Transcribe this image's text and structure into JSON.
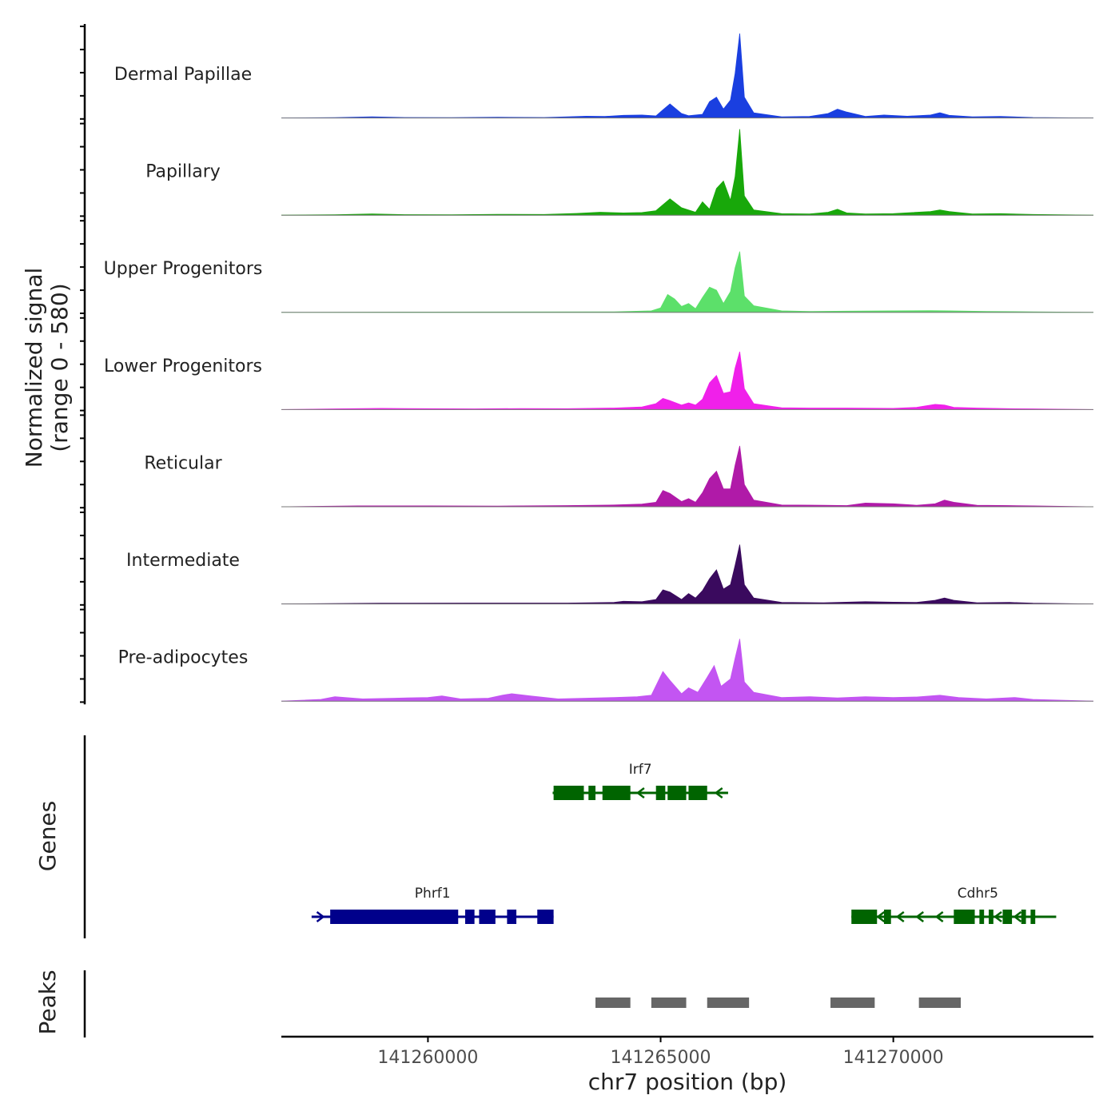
{
  "chart_data": {
    "type": "area",
    "title": "",
    "ylabel": "Normalized signal\n(range 0 - 580)",
    "ylabel_lines": [
      "Normalized signal",
      "(range 0 - 580)"
    ],
    "ylim": [
      0,
      580
    ],
    "xlabel": "chr7 position (bp)",
    "xlim": [
      141256850,
      141274300
    ],
    "x_ticks": [
      141260000,
      141265000,
      141270000
    ],
    "x_tick_labels": [
      "141260000",
      "141265000",
      "141270000"
    ],
    "tracks": [
      {
        "name": "Dermal Papillae",
        "color": "#1a3fe0",
        "x": [
          141256850,
          141258000,
          141258800,
          141259500,
          141260500,
          141261500,
          141262500,
          141263000,
          141263400,
          141263800,
          141264200,
          141264600,
          141264900,
          141265050,
          141265200,
          141265450,
          141265600,
          141265900,
          141266050,
          141266200,
          141266350,
          141266500,
          141266600,
          141266700,
          141266800,
          141267000,
          141267600,
          141268200,
          141268600,
          141268800,
          141269000,
          141269400,
          141269800,
          141270300,
          141270800,
          141271000,
          141271200,
          141271700,
          141272300,
          141273000,
          141274300
        ],
        "values": [
          0,
          2,
          8,
          3,
          2,
          5,
          3,
          8,
          12,
          10,
          18,
          20,
          14,
          55,
          95,
          30,
          15,
          25,
          110,
          140,
          60,
          120,
          300,
          570,
          140,
          35,
          8,
          10,
          30,
          60,
          40,
          10,
          20,
          12,
          20,
          35,
          18,
          8,
          10,
          3,
          0
        ]
      },
      {
        "name": "Papillary",
        "color": "#18a80a",
        "x": [
          141256850,
          141258000,
          141258800,
          141259500,
          141260500,
          141261500,
          141262500,
          141263200,
          141263700,
          141264200,
          141264600,
          141264900,
          141265050,
          141265200,
          141265450,
          141265600,
          141265750,
          141265900,
          141266050,
          141266200,
          141266350,
          141266500,
          141266600,
          141266700,
          141266800,
          141267000,
          141267600,
          141268200,
          141268600,
          141268800,
          141269000,
          141269400,
          141270000,
          141270800,
          141271000,
          141271200,
          141271700,
          141272300,
          141273000,
          141274300
        ],
        "values": [
          0,
          3,
          8,
          4,
          3,
          6,
          5,
          12,
          20,
          15,
          18,
          30,
          70,
          110,
          50,
          35,
          20,
          90,
          40,
          180,
          230,
          100,
          260,
          580,
          130,
          35,
          10,
          8,
          20,
          40,
          15,
          8,
          10,
          25,
          35,
          25,
          8,
          10,
          5,
          0
        ]
      },
      {
        "name": "Upper Progenitors",
        "color": "#5ce06a",
        "x": [
          141256850,
          141260000,
          141264000,
          141264800,
          141265000,
          141265150,
          141265300,
          141265450,
          141265600,
          141265750,
          141265900,
          141266050,
          141266200,
          141266350,
          141266500,
          141266600,
          141266700,
          141266800,
          141267000,
          141267600,
          141268200,
          141269000,
          141270000,
          141270800,
          141271200,
          141272000,
          141273000,
          141274300
        ],
        "values": [
          0,
          2,
          4,
          10,
          30,
          120,
          90,
          40,
          60,
          25,
          100,
          170,
          150,
          60,
          140,
          300,
          410,
          110,
          45,
          10,
          6,
          8,
          10,
          12,
          10,
          6,
          4,
          0
        ]
      },
      {
        "name": "Lower Progenitors",
        "color": "#f020ea",
        "x": [
          141256850,
          141258000,
          141259000,
          141260000,
          141261000,
          141262000,
          141263000,
          141264000,
          141264600,
          141264900,
          141265050,
          141265200,
          141265450,
          141265600,
          141265750,
          141265900,
          141266050,
          141266200,
          141266350,
          141266500,
          141266600,
          141266700,
          141266800,
          141267000,
          141267600,
          141268200,
          141269000,
          141270000,
          141270500,
          141270900,
          141271100,
          141271300,
          141271800,
          141272500,
          141273000,
          141274300
        ],
        "values": [
          0,
          5,
          8,
          6,
          5,
          7,
          6,
          10,
          18,
          40,
          75,
          60,
          30,
          45,
          30,
          70,
          180,
          230,
          110,
          120,
          280,
          390,
          140,
          40,
          12,
          10,
          10,
          8,
          15,
          35,
          30,
          15,
          10,
          6,
          5,
          0
        ]
      },
      {
        "name": "Reticular",
        "color": "#b01aa8",
        "x": [
          141256850,
          141258500,
          141260000,
          141261500,
          141263000,
          141264000,
          141264600,
          141264900,
          141265050,
          141265200,
          141265450,
          141265600,
          141265750,
          141265900,
          141266050,
          141266200,
          141266350,
          141266500,
          141266600,
          141266700,
          141266800,
          141267000,
          141267600,
          141268500,
          141269000,
          141269400,
          141270000,
          141270500,
          141270900,
          141271100,
          141271300,
          141271800,
          141272500,
          141273000,
          141274300
        ],
        "values": [
          0,
          6,
          6,
          5,
          8,
          12,
          18,
          30,
          110,
          90,
          35,
          55,
          30,
          95,
          190,
          240,
          120,
          120,
          280,
          410,
          150,
          45,
          12,
          10,
          8,
          25,
          20,
          10,
          20,
          45,
          30,
          10,
          8,
          6,
          0
        ]
      },
      {
        "name": "Intermediate",
        "color": "#3a0a5e",
        "x": [
          141256850,
          141259000,
          141261000,
          141263000,
          141264000,
          141264200,
          141264600,
          141264900,
          141265050,
          141265200,
          141265450,
          141265600,
          141265750,
          141265900,
          141266050,
          141266200,
          141266350,
          141266500,
          141266600,
          141266700,
          141266800,
          141267000,
          141267600,
          141268500,
          141269400,
          141270000,
          141270500,
          141270900,
          141271100,
          141271300,
          141271800,
          141272500,
          141273000,
          141274300
        ],
        "values": [
          0,
          5,
          6,
          6,
          10,
          18,
          15,
          30,
          95,
          80,
          30,
          70,
          40,
          90,
          170,
          230,
          100,
          130,
          260,
          400,
          130,
          40,
          10,
          8,
          15,
          12,
          10,
          25,
          40,
          25,
          8,
          10,
          5,
          0
        ]
      },
      {
        "name": "Pre-adipocytes",
        "color": "#c355f2",
        "x": [
          141256850,
          141257700,
          141258000,
          141258600,
          141259300,
          141260000,
          141260300,
          141260700,
          141261300,
          141261600,
          141261800,
          141262200,
          141262800,
          141263400,
          141264000,
          141264500,
          141264800,
          141265050,
          141265200,
          141265450,
          141265600,
          141265800,
          141266000,
          141266150,
          141266300,
          141266500,
          141266600,
          141266700,
          141266800,
          141267000,
          141267600,
          141268200,
          141268800,
          141269400,
          141270000,
          141270500,
          141271000,
          141271400,
          141272000,
          141272600,
          141273000,
          141274300
        ],
        "values": [
          0,
          12,
          30,
          15,
          20,
          25,
          35,
          15,
          20,
          40,
          50,
          35,
          15,
          20,
          25,
          30,
          40,
          200,
          140,
          50,
          90,
          60,
          160,
          240,
          100,
          150,
          290,
          420,
          130,
          60,
          25,
          30,
          22,
          30,
          25,
          28,
          40,
          25,
          15,
          25,
          12,
          0
        ]
      }
    ]
  },
  "genes_panel": {
    "label": "Genes",
    "genes": [
      {
        "name": "Irf7",
        "strand": "-",
        "start": 141262680,
        "end": 141266450,
        "color": "#006400",
        "row": 0,
        "exons": [
          [
            141262700,
            141263350
          ],
          [
            141263450,
            141263600
          ],
          [
            141263750,
            141264350
          ],
          [
            141264900,
            141265100
          ],
          [
            141265150,
            141265550
          ],
          [
            141265600,
            141266000
          ]
        ]
      },
      {
        "name": "Phrf1",
        "strand": "+",
        "start": 141257500,
        "end": 141262700,
        "color": "#00008b",
        "row": 1,
        "exons": [
          [
            141257900,
            141260650
          ],
          [
            141260800,
            141261000
          ],
          [
            141261100,
            141261450
          ],
          [
            141261700,
            141261900
          ],
          [
            141262350,
            141262700
          ]
        ]
      },
      {
        "name": "Cdhr5",
        "strand": "-",
        "start": 141269100,
        "end": 141273500,
        "color": "#006400",
        "row": 1,
        "exons": [
          [
            141269100,
            141269650
          ],
          [
            141269800,
            141269950
          ],
          [
            141271300,
            141271750
          ],
          [
            141271850,
            141271950
          ],
          [
            141272050,
            141272150
          ],
          [
            141272350,
            141272550
          ],
          [
            141272750,
            141272850
          ],
          [
            141272950,
            141273050
          ]
        ]
      }
    ]
  },
  "peaks_panel": {
    "label": "Peaks",
    "color": "#666666",
    "peaks": [
      [
        141263600,
        141264350
      ],
      [
        141264800,
        141265550
      ],
      [
        141266000,
        141266900
      ],
      [
        141268650,
        141269600
      ],
      [
        141270550,
        141271450
      ]
    ]
  }
}
